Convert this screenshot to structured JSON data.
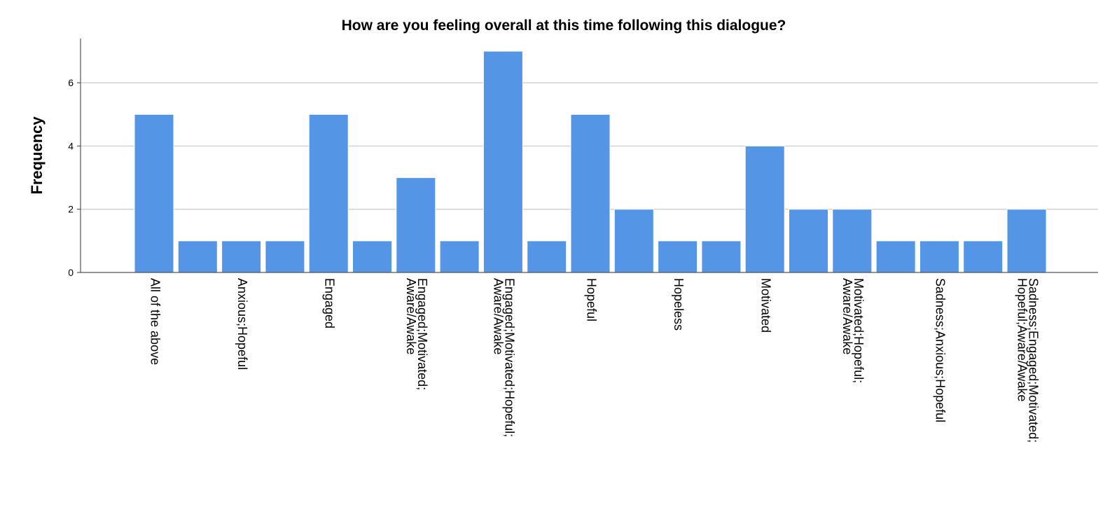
{
  "chart_data": {
    "type": "bar",
    "title": "How are you feeling overall at this time following this dialogue?",
    "xlabel": "",
    "ylabel": "Frequency",
    "ylim": [
      0,
      7.4
    ],
    "yticks": [
      0,
      2,
      4,
      6
    ],
    "grid": true,
    "tick_labels": [
      [
        "All of the above"
      ],
      [],
      [
        "Anxious;Hopeful"
      ],
      [],
      [
        "Engaged"
      ],
      [],
      [
        "Engaged;Motivated;",
        "Aware/Awake"
      ],
      [],
      [
        "Engaged;Motivated;Hopeful;",
        "Aware/Awake"
      ],
      [],
      [
        "Hopeful"
      ],
      [],
      [
        "Hopeless"
      ],
      [],
      [
        "Motivated"
      ],
      [],
      [
        "Motivated;Hopeful;",
        "Aware/Awake"
      ],
      [],
      [
        "Sadness;Anxious;Hopeful"
      ],
      [],
      [
        "Sadness;Engaged;Motivated;",
        "Hopeful;Aware/Awake"
      ]
    ],
    "values": [
      5,
      1,
      1,
      1,
      5,
      1,
      3,
      1,
      7,
      1,
      5,
      2,
      1,
      1,
      4,
      2,
      2,
      1,
      1,
      1,
      2
    ],
    "colors": {
      "bar": "#5595e6",
      "grid": "#d3d3d3",
      "axis": "#555555"
    }
  }
}
